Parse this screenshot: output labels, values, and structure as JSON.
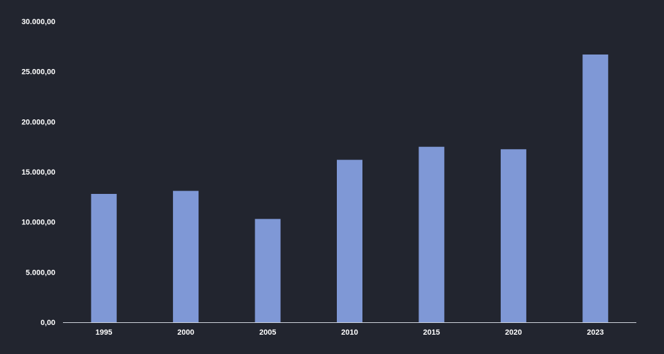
{
  "colors": {
    "background": "#22252f",
    "bar": "#7f98d6",
    "axis_line": "#cfd3dc",
    "text": "#ffffff"
  },
  "chart_data": {
    "type": "bar",
    "title": "",
    "xlabel": "",
    "ylabel": "",
    "categories": [
      "1995",
      "2000",
      "2005",
      "2010",
      "2015",
      "2020",
      "2023"
    ],
    "values": [
      12800,
      13100,
      10300,
      16200,
      17500,
      17250,
      26700
    ],
    "ylim": [
      0,
      30000
    ],
    "yticks": [
      0,
      5000,
      10000,
      15000,
      20000,
      25000,
      30000
    ],
    "ytick_labels": [
      "0,00",
      "5.000,00",
      "10.000,00",
      "15.000,00",
      "20.000,00",
      "25.000,00",
      "30.000,00"
    ],
    "grid": false,
    "legend": "none"
  }
}
